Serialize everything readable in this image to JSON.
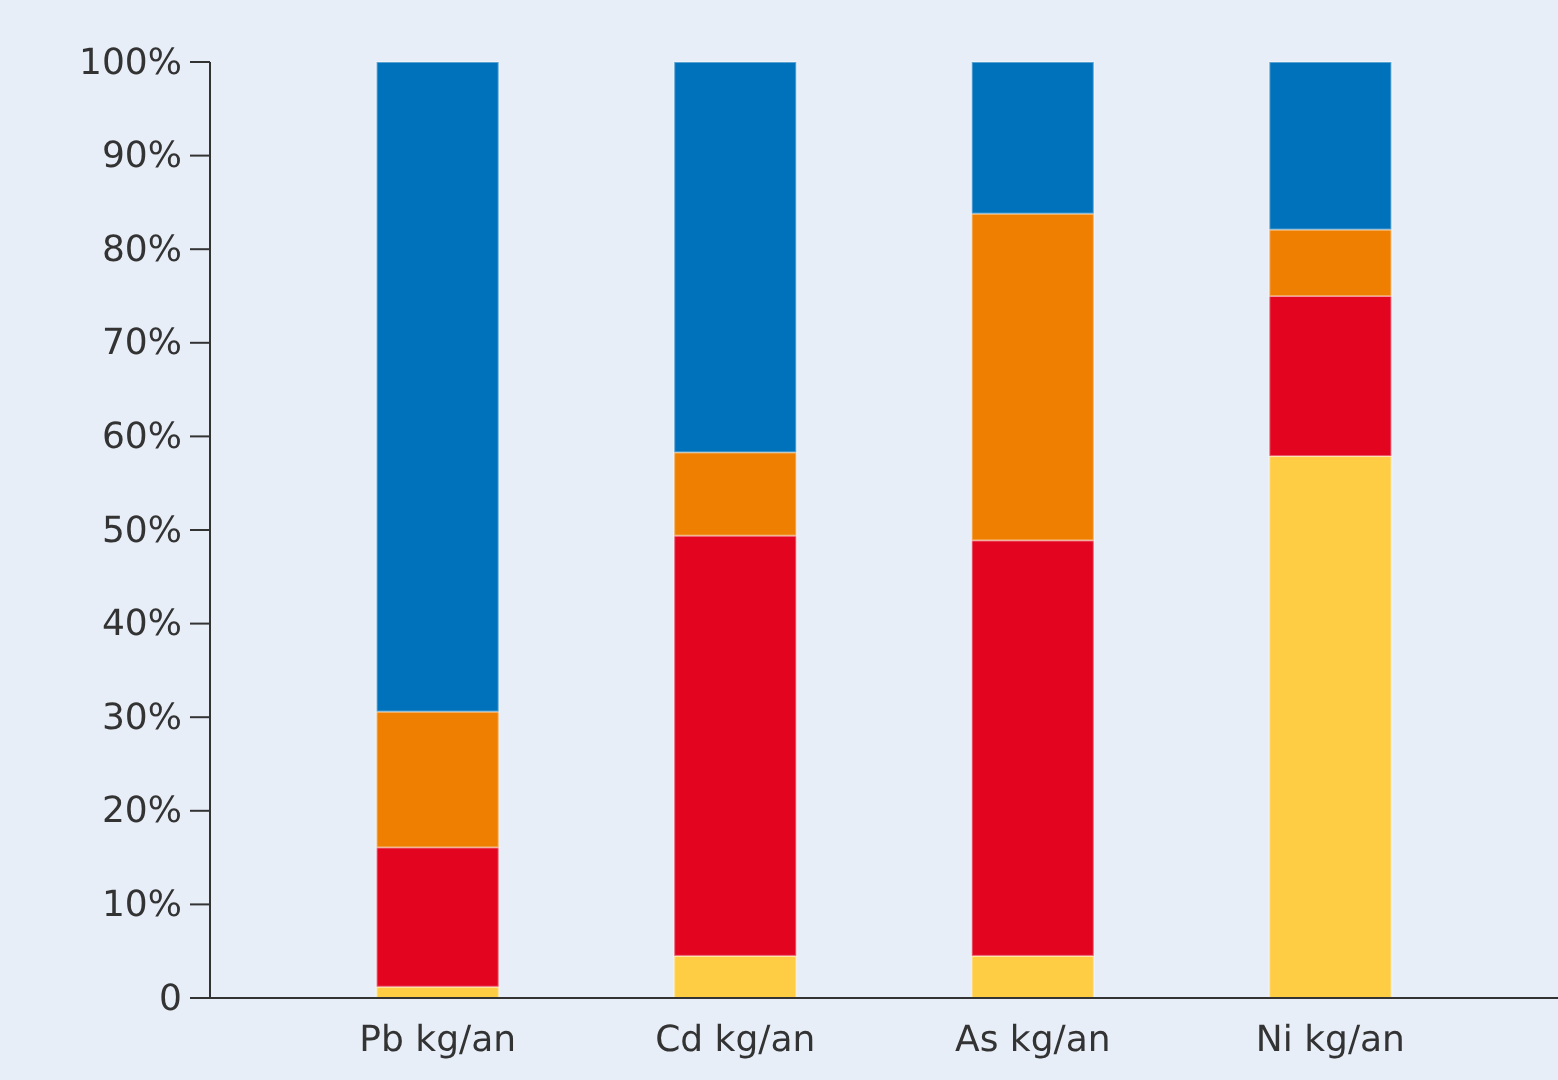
{
  "chart_data": {
    "type": "bar",
    "stacked": true,
    "categories": [
      "Pb kg/an",
      "Cd kg/an",
      "As kg/an",
      "Ni kg/an"
    ],
    "series": [
      {
        "color": "#ffcd44",
        "values": [
          1.2,
          4.5,
          4.5,
          57.9
        ]
      },
      {
        "color": "#e30520",
        "values": [
          14.9,
          44.9,
          44.4,
          17.1
        ]
      },
      {
        "color": "#ef7f00",
        "values": [
          14.5,
          8.9,
          34.9,
          7.1
        ]
      },
      {
        "color": "#0072bb",
        "values": [
          69.4,
          41.7,
          16.2,
          17.9
        ]
      }
    ],
    "ylim": [
      0,
      100
    ],
    "yticks": [
      0,
      {
        "value": 10,
        "label": "10%"
      },
      {
        "value": 20,
        "label": "20%"
      },
      {
        "value": 30,
        "label": "30%"
      },
      {
        "value": 40,
        "label": "40%"
      },
      {
        "value": 50,
        "label": "50%"
      },
      {
        "value": 60,
        "label": "60%"
      },
      {
        "value": 70,
        "label": "70%"
      },
      {
        "value": 80,
        "label": "80%"
      },
      {
        "value": 90,
        "label": "90%"
      },
      {
        "value": 100,
        "label": "100%"
      }
    ],
    "grid": false
  }
}
